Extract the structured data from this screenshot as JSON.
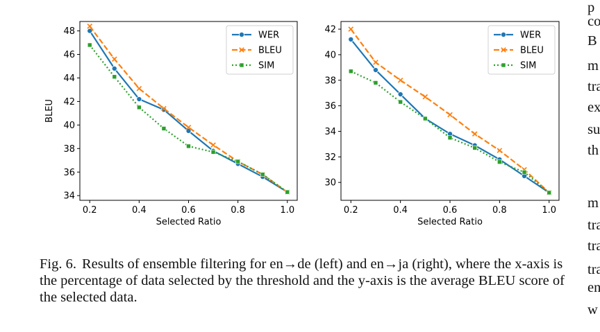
{
  "figure": {
    "caption_label": "Fig. 6.",
    "caption_text": "Results of ensemble filtering for en→de (left) and en→ja (right), where the x-axis is the percentage of data selected by the threshold and the y-axis is the average BLEU score of the selected data."
  },
  "side_text": [
    "p",
    "co",
    "B",
    "m",
    "tra",
    "ex",
    "su",
    "th",
    "m",
    "tra",
    "tra",
    "tra",
    "en",
    "w"
  ],
  "chart_data": [
    {
      "type": "line",
      "xlabel": "Selected Ratio",
      "ylabel": "BLEU",
      "xlim": [
        0.16,
        1.04
      ],
      "ylim": [
        33.6,
        48.8
      ],
      "xticks": [
        0.2,
        0.4,
        0.6,
        0.8,
        1.0
      ],
      "xtick_labels": [
        "0.2",
        "0.4",
        "0.6",
        "0.8",
        "1.0"
      ],
      "yticks": [
        34,
        36,
        38,
        40,
        42,
        44,
        46,
        48
      ],
      "legend": "top-right",
      "grid": false,
      "x": [
        0.2,
        0.3,
        0.4,
        0.5,
        0.6,
        0.7,
        0.8,
        0.9,
        1.0
      ],
      "series": [
        {
          "name": "WER",
          "color": "#1f77b4",
          "marker": "circle",
          "style": "solid",
          "values": [
            48.0,
            44.8,
            42.2,
            41.3,
            39.5,
            37.8,
            36.7,
            35.6,
            34.3
          ]
        },
        {
          "name": "BLEU",
          "color": "#ff7f0e",
          "marker": "x",
          "style": "dashed",
          "values": [
            48.4,
            45.6,
            43.1,
            41.4,
            39.8,
            38.3,
            36.9,
            35.8,
            34.3
          ]
        },
        {
          "name": "SIM",
          "color": "#2ca02c",
          "marker": "square",
          "style": "dotted",
          "values": [
            46.8,
            44.1,
            41.5,
            39.7,
            38.2,
            37.7,
            36.9,
            35.8,
            34.3
          ]
        }
      ]
    },
    {
      "type": "line",
      "xlabel": "Selected Ratio",
      "ylabel": "",
      "xlim": [
        0.16,
        1.04
      ],
      "ylim": [
        28.6,
        42.6
      ],
      "xticks": [
        0.2,
        0.4,
        0.6,
        0.8,
        1.0
      ],
      "xtick_labels": [
        "0.2",
        "0.4",
        "0.6",
        "0.8",
        "1.0"
      ],
      "yticks": [
        30,
        32,
        34,
        36,
        38,
        40,
        42
      ],
      "legend": "top-right",
      "grid": false,
      "x": [
        0.2,
        0.3,
        0.4,
        0.5,
        0.6,
        0.7,
        0.8,
        0.9,
        1.0
      ],
      "series": [
        {
          "name": "WER",
          "color": "#1f77b4",
          "marker": "circle",
          "style": "solid",
          "values": [
            41.2,
            38.8,
            36.9,
            35.0,
            33.8,
            32.9,
            31.8,
            30.5,
            29.2
          ]
        },
        {
          "name": "BLEU",
          "color": "#ff7f0e",
          "marker": "x",
          "style": "dashed",
          "values": [
            42.0,
            39.4,
            38.0,
            36.7,
            35.3,
            33.8,
            32.5,
            31.0,
            29.2
          ]
        },
        {
          "name": "SIM",
          "color": "#2ca02c",
          "marker": "square",
          "style": "dotted",
          "values": [
            38.7,
            37.8,
            36.3,
            35.0,
            33.5,
            32.7,
            31.6,
            30.8,
            29.2
          ]
        }
      ]
    }
  ]
}
